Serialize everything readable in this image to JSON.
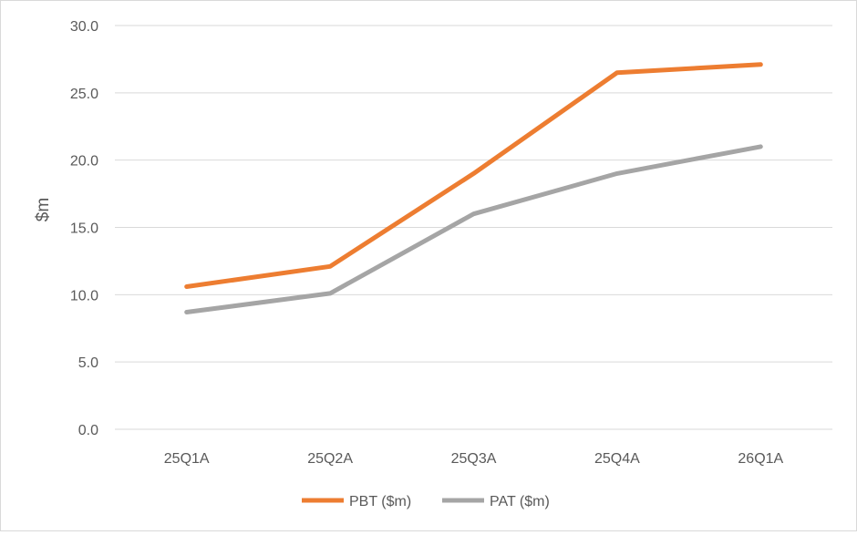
{
  "chart_data": {
    "type": "line",
    "title": "",
    "xlabel": "",
    "ylabel": "$m",
    "categories": [
      "25Q1A",
      "25Q2A",
      "25Q3A",
      "25Q4A",
      "26Q1A"
    ],
    "ylim": [
      0,
      30
    ],
    "yticks": [
      "0.0",
      "5.0",
      "10.0",
      "15.0",
      "20.0",
      "25.0",
      "30.0"
    ],
    "grid": true,
    "legend_position": "bottom",
    "series": [
      {
        "name": "PBT ($m)",
        "color": "#ED7D31",
        "values": [
          10.6,
          12.1,
          19.0,
          26.5,
          27.1
        ]
      },
      {
        "name": "PAT ($m)",
        "color": "#A5A5A5",
        "values": [
          8.7,
          10.1,
          16.0,
          19.0,
          21.0
        ]
      }
    ]
  }
}
